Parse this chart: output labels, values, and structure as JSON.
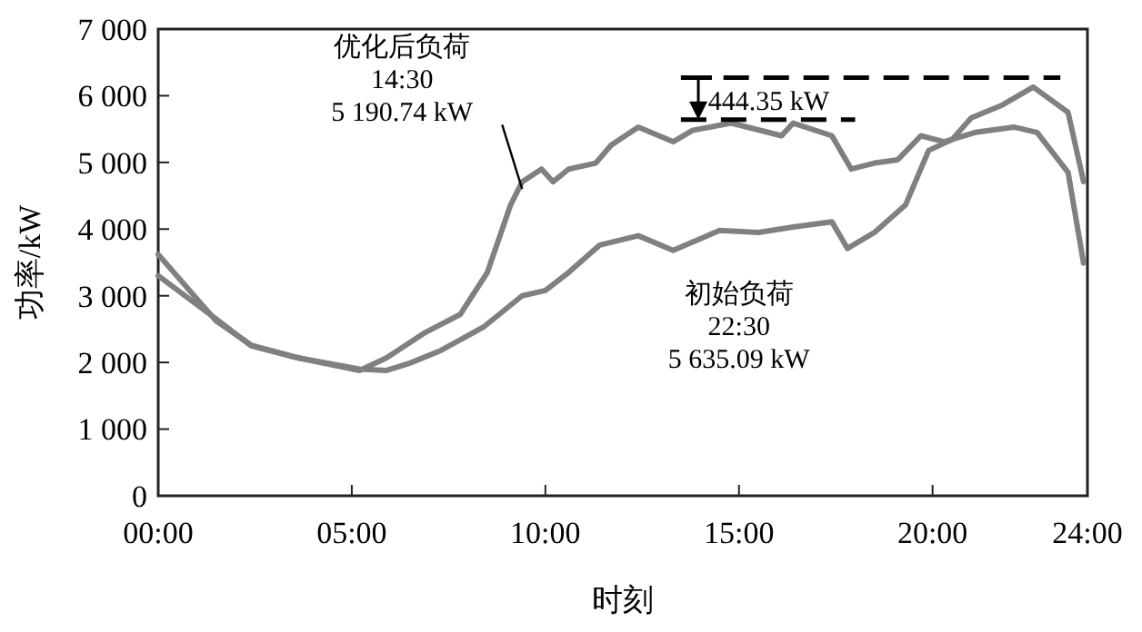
{
  "chart_data": {
    "type": "line",
    "xlabel": "时刻",
    "ylabel": "功率/kW",
    "xlim": [
      0,
      24
    ],
    "xticks": [
      {
        "value": 0,
        "label": "00:00"
      },
      {
        "value": 5,
        "label": "05:00"
      },
      {
        "value": 10,
        "label": "10:00"
      },
      {
        "value": 15,
        "label": "15:00"
      },
      {
        "value": 20,
        "label": "20:00"
      },
      {
        "value": 24,
        "label": "24:00"
      }
    ],
    "ylim": [
      0,
      7000
    ],
    "yticks": [
      0,
      {
        "value": 1000,
        "label": "1 000"
      },
      {
        "value": 2000,
        "label": "2 000"
      },
      {
        "value": 3000,
        "label": "3 000"
      },
      {
        "value": 4000,
        "label": "4 000"
      },
      {
        "value": 5000,
        "label": "5 000"
      },
      {
        "value": 6000,
        "label": "6 000"
      },
      {
        "value": 7000,
        "label": "7 000"
      }
    ],
    "grid": false,
    "line_style": "solid",
    "series": [
      {
        "color": "#808080",
        "x": [
          0,
          1.5,
          2.4,
          3.6,
          5.2,
          5.9,
          6.9,
          7.8,
          8.5,
          9.1,
          9.4,
          9.9,
          10.2,
          10.6,
          11.3,
          11.7,
          12.4,
          13.3,
          13.8,
          14.8,
          16.1,
          16.4,
          17.4,
          17.9,
          18.5,
          19.1,
          19.7,
          20.3,
          21.1,
          22.1,
          22.7,
          23.5,
          23.9
        ],
        "values": [
          3620,
          2620,
          2260,
          2070,
          1880,
          2070,
          2450,
          2720,
          3350,
          4360,
          4710,
          4900,
          4710,
          4900,
          4990,
          5260,
          5530,
          5310,
          5480,
          5590,
          5400,
          5590,
          5400,
          4900,
          4990,
          5040,
          5400,
          5310,
          5450,
          5530,
          5450,
          4850,
          3490
        ]
      },
      {
        "color": "#808080",
        "x": [
          0,
          1.5,
          2.4,
          3.6,
          5.2,
          5.9,
          6.5,
          7.3,
          8.4,
          9.4,
          10.0,
          10.6,
          11.4,
          12.4,
          13.3,
          14.5,
          15.5,
          16.4,
          17.4,
          17.8,
          18.5,
          19.3,
          19.9,
          20.5,
          21.0,
          21.8,
          22.6,
          23.5,
          23.9
        ],
        "values": [
          3300,
          2650,
          2250,
          2070,
          1900,
          1880,
          1990,
          2180,
          2530,
          3000,
          3080,
          3350,
          3760,
          3900,
          3680,
          3980,
          3950,
          4030,
          4110,
          3710,
          3950,
          4360,
          5180,
          5340,
          5670,
          5860,
          6130,
          5750,
          4710
        ]
      }
    ],
    "ref_lines": [
      {
        "axis": "y",
        "value": 6270,
        "color": "#000000",
        "line_style": "dashed"
      },
      {
        "axis": "y",
        "value": 5640,
        "color": "#000000",
        "line_style": "dashed"
      }
    ],
    "annotations": [
      {
        "text": "优化后负荷\n14:30\n5 190.74 kW",
        "x": 9.4,
        "y": 4600
      },
      "初始负荷\n22:30\n5 635.09 kW",
      "444.35 kW"
    ]
  }
}
